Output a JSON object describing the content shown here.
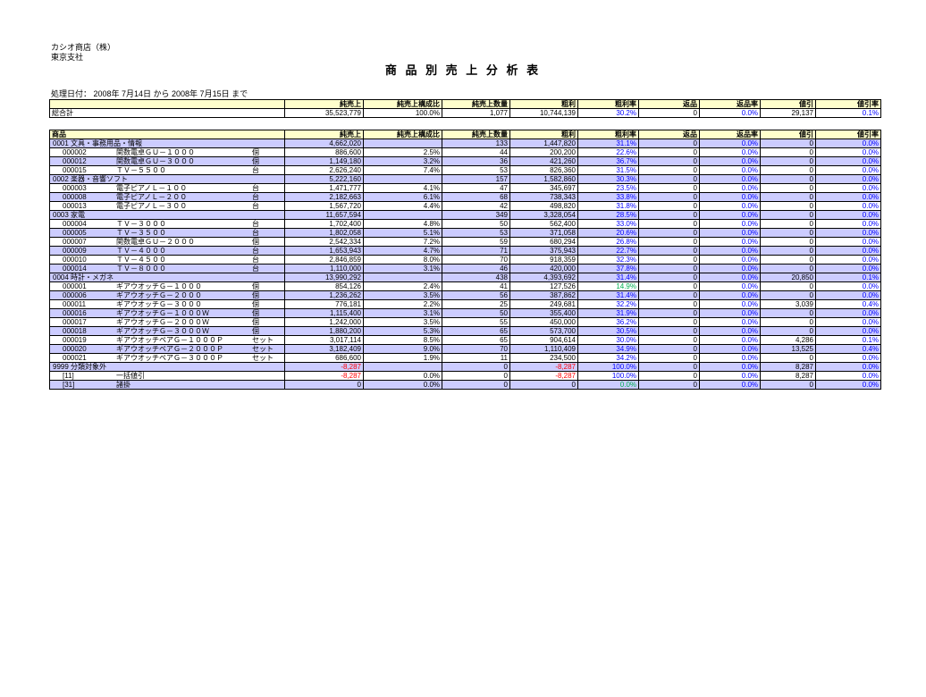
{
  "report": {
    "company_line1": "カシオ商店（株）",
    "company_line2": "東京支社",
    "title": "商 品 別 売 上 分 析 表",
    "processing_date": "処理日付： 2008年 7月14日 から 2008年 7月15日 まで"
  },
  "colors": {
    "header_bg": "#ffffcc",
    "stripe_bg": "#ccccff",
    "rate_blue": "#0000ff",
    "negative_red": "#ff0000",
    "good_green": "#00b050"
  },
  "columns": [
    "商品",
    "純売上",
    "純売上構成比",
    "純売上数量",
    "粗利",
    "粗利率",
    "返品",
    "返品率",
    "値引",
    "値引率"
  ],
  "summary_table": {
    "first_header": "",
    "total_label": "総合計",
    "total_values": [
      "35,523,779",
      "100.0%",
      "1,077",
      "10,744,139",
      "30.2%",
      "0",
      "0.0%",
      "29,137",
      "0.1%"
    ]
  },
  "main_table": {
    "first_header": "商品",
    "rows": [
      {
        "type": "category",
        "label": "0001 文具・事務用品・情報",
        "values": [
          "4,662,020",
          "",
          "133",
          "1,447,820",
          "31.1%",
          "0",
          "0.0%",
          "0",
          "0.0%"
        ]
      },
      {
        "type": "item",
        "code": "000002",
        "name": "関数電卓ＧＵ－１０００",
        "unit": "個",
        "values": [
          "886,600",
          "2.5%",
          "44",
          "200,200",
          "22.6%",
          "0",
          "0.0%",
          "0",
          "0.0%"
        ]
      },
      {
        "type": "item",
        "code": "000012",
        "name": "関数電卓ＧＵ－３０００",
        "unit": "個",
        "values": [
          "1,149,180",
          "3.2%",
          "36",
          "421,260",
          "36.7%",
          "0",
          "0.0%",
          "0",
          "0.0%"
        ]
      },
      {
        "type": "item",
        "code": "000015",
        "name": "ＴＶ－５５００",
        "unit": "台",
        "values": [
          "2,626,240",
          "7.4%",
          "53",
          "826,360",
          "31.5%",
          "0",
          "0.0%",
          "0",
          "0.0%"
        ]
      },
      {
        "type": "category",
        "label": "0002 楽器・音響ソフト",
        "values": [
          "5,222,160",
          "",
          "157",
          "1,582,860",
          "30.3%",
          "0",
          "0.0%",
          "0",
          "0.0%"
        ]
      },
      {
        "type": "item",
        "code": "000003",
        "name": "電子ピアノＬ－１００",
        "unit": "台",
        "values": [
          "1,471,777",
          "4.1%",
          "47",
          "345,697",
          "23.5%",
          "0",
          "0.0%",
          "0",
          "0.0%"
        ]
      },
      {
        "type": "item",
        "code": "000008",
        "name": "電子ピアノＬ－２００",
        "unit": "台",
        "values": [
          "2,182,663",
          "6.1%",
          "68",
          "738,343",
          "33.8%",
          "0",
          "0.0%",
          "0",
          "0.0%"
        ]
      },
      {
        "type": "item",
        "code": "000013",
        "name": "電子ピアノＬ－３００",
        "unit": "台",
        "values": [
          "1,567,720",
          "4.4%",
          "42",
          "498,820",
          "31.8%",
          "0",
          "0.0%",
          "0",
          "0.0%"
        ]
      },
      {
        "type": "category",
        "label": "0003 家電",
        "values": [
          "11,657,594",
          "",
          "349",
          "3,328,054",
          "28.5%",
          "0",
          "0.0%",
          "0",
          "0.0%"
        ]
      },
      {
        "type": "item",
        "code": "000004",
        "name": "ＴＶ－３０００",
        "unit": "台",
        "values": [
          "1,702,400",
          "4.8%",
          "50",
          "562,400",
          "33.0%",
          "0",
          "0.0%",
          "0",
          "0.0%"
        ]
      },
      {
        "type": "item",
        "code": "000005",
        "name": "ＴＶ－３５００",
        "unit": "台",
        "values": [
          "1,802,058",
          "5.1%",
          "53",
          "371,058",
          "20.6%",
          "0",
          "0.0%",
          "0",
          "0.0%"
        ]
      },
      {
        "type": "item",
        "code": "000007",
        "name": "関数電卓ＧＵ－２０００",
        "unit": "個",
        "values": [
          "2,542,334",
          "7.2%",
          "59",
          "680,294",
          "26.8%",
          "0",
          "0.0%",
          "0",
          "0.0%"
        ]
      },
      {
        "type": "item",
        "code": "000009",
        "name": "ＴＶ－４０００",
        "unit": "台",
        "values": [
          "1,653,943",
          "4.7%",
          "71",
          "375,943",
          "22.7%",
          "0",
          "0.0%",
          "0",
          "0.0%"
        ]
      },
      {
        "type": "item",
        "code": "000010",
        "name": "ＴＶ－４５００",
        "unit": "台",
        "values": [
          "2,846,859",
          "8.0%",
          "70",
          "918,359",
          "32.3%",
          "0",
          "0.0%",
          "0",
          "0.0%"
        ]
      },
      {
        "type": "item",
        "code": "000014",
        "name": "ＴＶ－８０００",
        "unit": "台",
        "values": [
          "1,110,000",
          "3.1%",
          "46",
          "420,000",
          "37.8%",
          "0",
          "0.0%",
          "0",
          "0.0%"
        ]
      },
      {
        "type": "category",
        "label": "0004 時計・メガネ",
        "values": [
          "13,990,292",
          "",
          "438",
          "4,393,692",
          "31.4%",
          "0",
          "0.0%",
          "20,850",
          "0.1%"
        ]
      },
      {
        "type": "item",
        "code": "000001",
        "name": "ギアウオッチＧ－１０００",
        "unit": "個",
        "values": [
          "854,126",
          "2.4%",
          "41",
          "127,526",
          "14.9%",
          "0",
          "0.0%",
          "0",
          "0.0%"
        ],
        "colors": {
          "4": "green"
        }
      },
      {
        "type": "item",
        "code": "000006",
        "name": "ギアウオッチＧ－２０００",
        "unit": "個",
        "values": [
          "1,236,262",
          "3.5%",
          "56",
          "387,862",
          "31.4%",
          "0",
          "0.0%",
          "0",
          "0.0%"
        ]
      },
      {
        "type": "item",
        "code": "000011",
        "name": "ギアウオッチＧ－３０００",
        "unit": "個",
        "values": [
          "776,181",
          "2.2%",
          "25",
          "249,681",
          "32.2%",
          "0",
          "0.0%",
          "3,039",
          "0.4%"
        ]
      },
      {
        "type": "item",
        "code": "000016",
        "name": "ギアウオッチＧ－１０００Ｗ",
        "unit": "個",
        "values": [
          "1,115,400",
          "3.1%",
          "50",
          "355,400",
          "31.9%",
          "0",
          "0.0%",
          "0",
          "0.0%"
        ]
      },
      {
        "type": "item",
        "code": "000017",
        "name": "ギアウオッチＧ－２０００Ｗ",
        "unit": "個",
        "values": [
          "1,242,000",
          "3.5%",
          "55",
          "450,000",
          "36.2%",
          "0",
          "0.0%",
          "0",
          "0.0%"
        ]
      },
      {
        "type": "item",
        "code": "000018",
        "name": "ギアウオッチＧ－３０００Ｗ",
        "unit": "個",
        "values": [
          "1,880,200",
          "5.3%",
          "65",
          "573,700",
          "30.5%",
          "0",
          "0.0%",
          "0",
          "0.0%"
        ]
      },
      {
        "type": "item",
        "code": "000019",
        "name": "ギアウオッチペアＧ－１０００Ｐ",
        "unit": "セット",
        "values": [
          "3,017,114",
          "8.5%",
          "65",
          "904,614",
          "30.0%",
          "0",
          "0.0%",
          "4,286",
          "0.1%"
        ]
      },
      {
        "type": "item",
        "code": "000020",
        "name": "ギアウオッチペアＧ－２０００Ｐ",
        "unit": "セット",
        "values": [
          "3,182,409",
          "9.0%",
          "70",
          "1,110,409",
          "34.9%",
          "0",
          "0.0%",
          "13,525",
          "0.4%"
        ]
      },
      {
        "type": "item",
        "code": "000021",
        "name": "ギアウオッチペアＧ－３０００Ｐ",
        "unit": "セット",
        "values": [
          "686,600",
          "1.9%",
          "11",
          "234,500",
          "34.2%",
          "0",
          "0.0%",
          "0",
          "0.0%"
        ]
      },
      {
        "type": "category",
        "label": "9999 分類対象外",
        "values": [
          "-8,287",
          "",
          "0",
          "-8,287",
          "100.0%",
          "0",
          "0.0%",
          "8,287",
          "0.0%"
        ]
      },
      {
        "type": "item",
        "code": "[11]",
        "name": "一括値引",
        "unit": "",
        "values": [
          "-8,287",
          "0.0%",
          "0",
          "-8,287",
          "100.0%",
          "0",
          "0.0%",
          "8,287",
          "0.0%"
        ]
      },
      {
        "type": "item",
        "code": "[31]",
        "name": "諸掛",
        "unit": "",
        "values": [
          "0",
          "0.0%",
          "0",
          "0",
          "0.0%",
          "0",
          "0.0%",
          "0",
          "0.0%"
        ],
        "colors": {
          "4": "green"
        }
      }
    ]
  }
}
